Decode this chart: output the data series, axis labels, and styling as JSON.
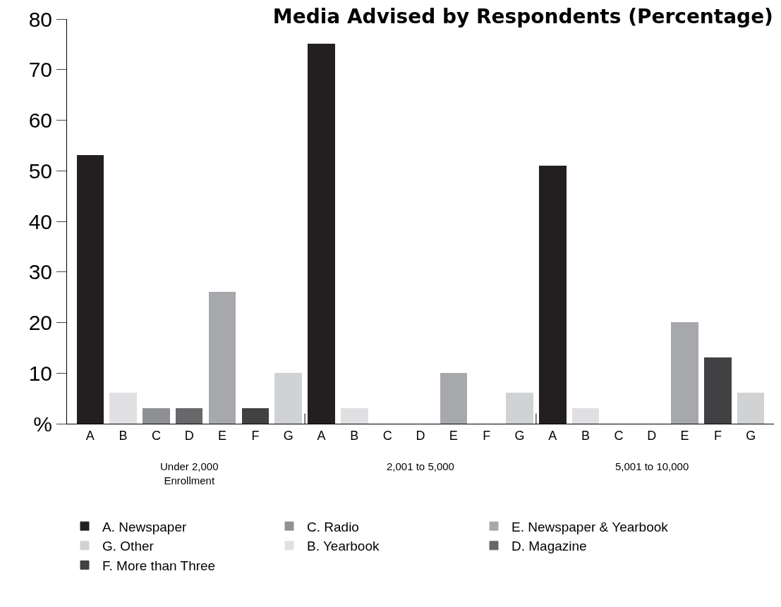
{
  "chart_data": {
    "type": "bar",
    "title": "Media Advised by Respondents (Percentage)",
    "categories": [
      "A",
      "B",
      "C",
      "D",
      "E",
      "F",
      "G",
      "A",
      "B",
      "C",
      "D",
      "E",
      "F",
      "G",
      "A",
      "B",
      "C",
      "D",
      "E",
      "F",
      "G"
    ],
    "stacked": true,
    "series": [
      {
        "name": "A. Newspaper",
        "color": "#231f20",
        "values": [
          53,
          null,
          null,
          null,
          null,
          null,
          null,
          75,
          null,
          null,
          null,
          null,
          null,
          null,
          51,
          null,
          null,
          null,
          null,
          null,
          null
        ]
      },
      {
        "name": "B. Yearbook",
        "color": "#e0e0e2",
        "values": [
          null,
          6,
          null,
          null,
          null,
          null,
          null,
          null,
          3,
          null,
          null,
          null,
          null,
          null,
          null,
          3,
          null,
          null,
          null,
          null,
          null
        ]
      },
      {
        "name": "C. Radio",
        "color": "#8f9093",
        "values": [
          null,
          null,
          3,
          null,
          null,
          null,
          null,
          null,
          null,
          0,
          null,
          null,
          null,
          null,
          null,
          null,
          0,
          null,
          null,
          null,
          null
        ]
      },
      {
        "name": "D. Magazine",
        "color": "#68686a",
        "values": [
          null,
          null,
          null,
          3,
          null,
          null,
          null,
          null,
          null,
          null,
          0,
          null,
          null,
          null,
          null,
          null,
          null,
          0,
          null,
          null,
          null
        ]
      },
      {
        "name": "E. Newspaper & Yearbook",
        "color": "#a7a8ab",
        "values": [
          null,
          null,
          null,
          null,
          26,
          null,
          null,
          null,
          null,
          null,
          null,
          10,
          null,
          null,
          null,
          null,
          null,
          null,
          20,
          null,
          null
        ]
      },
      {
        "name": "F. More than Three",
        "color": "#414143",
        "values": [
          null,
          null,
          null,
          null,
          null,
          3,
          null,
          null,
          null,
          null,
          null,
          null,
          0,
          null,
          null,
          null,
          null,
          null,
          null,
          13,
          null
        ]
      },
      {
        "name": "G. Other",
        "color": "#d1d2d4",
        "values": [
          null,
          null,
          null,
          null,
          null,
          null,
          10,
          null,
          null,
          null,
          null,
          null,
          null,
          6,
          null,
          null,
          null,
          null,
          null,
          null,
          6
        ]
      }
    ],
    "annotations": [
      "Under 2,000\nEnrollment",
      "2,001 to 5,000",
      "5,001 to 10,000"
    ],
    "ylim": [
      0,
      80
    ],
    "yticks": [
      {
        "value": 0,
        "label": "%"
      },
      10,
      20,
      30,
      40,
      50,
      60,
      70,
      80
    ],
    "legend": "bottom"
  }
}
